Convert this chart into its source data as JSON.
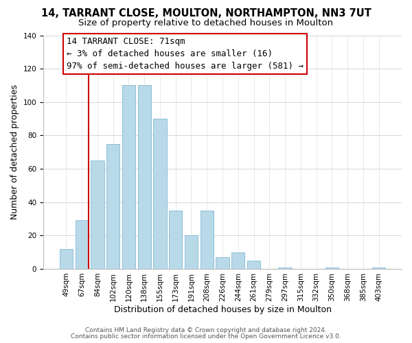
{
  "title": "14, TARRANT CLOSE, MOULTON, NORTHAMPTON, NN3 7UT",
  "subtitle": "Size of property relative to detached houses in Moulton",
  "xlabel": "Distribution of detached houses by size in Moulton",
  "ylabel": "Number of detached properties",
  "bar_labels": [
    "49sqm",
    "67sqm",
    "84sqm",
    "102sqm",
    "120sqm",
    "138sqm",
    "155sqm",
    "173sqm",
    "191sqm",
    "208sqm",
    "226sqm",
    "244sqm",
    "261sqm",
    "279sqm",
    "297sqm",
    "315sqm",
    "332sqm",
    "350sqm",
    "368sqm",
    "385sqm",
    "403sqm"
  ],
  "bar_values": [
    12,
    29,
    65,
    75,
    110,
    110,
    90,
    35,
    20,
    35,
    7,
    10,
    5,
    0,
    1,
    0,
    0,
    1,
    0,
    0,
    1
  ],
  "bar_color": "#b8d9e8",
  "bar_edge_color": "#7fb8d4",
  "vline_color": "#cc0000",
  "annotation_line1": "14 TARRANT CLOSE: 71sqm",
  "annotation_line2": "← 3% of detached houses are smaller (16)",
  "annotation_line3": "97% of semi-detached houses are larger (581) →",
  "annotation_box_edgecolor": "#cc0000",
  "annotation_box_facecolor": "#ffffff",
  "ylim": [
    0,
    140
  ],
  "yticks": [
    0,
    20,
    40,
    60,
    80,
    100,
    120,
    140
  ],
  "footer1": "Contains HM Land Registry data © Crown copyright and database right 2024.",
  "footer2": "Contains public sector information licensed under the Open Government Licence v3.0.",
  "title_fontsize": 10.5,
  "subtitle_fontsize": 9.5,
  "xlabel_fontsize": 9,
  "ylabel_fontsize": 9,
  "tick_fontsize": 7.5,
  "annotation_fontsize": 9,
  "footer_fontsize": 6.5,
  "grid_color": "#d0d8e0"
}
